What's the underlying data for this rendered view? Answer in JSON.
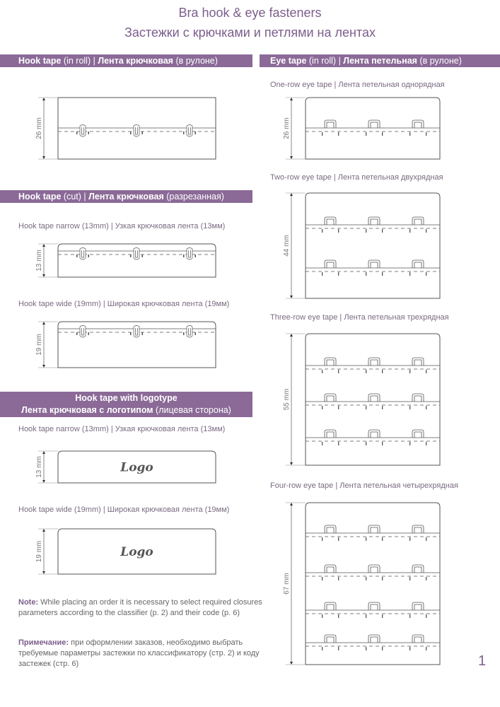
{
  "title_en": "Bra hook & eye fasteners",
  "title_ru": "Застежки с крючками и петлями на лентах",
  "colors": {
    "accent": "#8b6a97",
    "title": "#7c5e8c",
    "line": "#555555"
  },
  "sections": {
    "hook_roll": {
      "b1": "Hook tape",
      "n1": " (in roll) | ",
      "b2": "Лента крючковая",
      "n2": " (в рулоне)"
    },
    "eye_roll": {
      "b1": "Eye tape",
      "n1": " (in roll) | ",
      "b2": "Лента петельная",
      "n2": " (в рулоне)"
    },
    "hook_cut": {
      "b1": "Hook tape",
      "n1": " (cut) | ",
      "b2": "Лента крючковая",
      "n2": " (разрезанная)"
    },
    "hook_logo": {
      "line1": "Hook tape with logotype",
      "b2": "Лента крючковая с логотипом",
      "n2": " (лицевая сторона)"
    }
  },
  "captions": {
    "hook_narrow": "Hook tape narrow (13mm) | Узкая крючковая лента (13мм)",
    "hook_wide": "Hook tape wide (19mm) | Широкая крючковая лента (19мм)",
    "logo_narrow": "Hook tape narrow (13mm) | Узкая крючковая лента (13мм)",
    "logo_wide": "Hook tape wide (19mm) | Широкая крючковая лента (19мм)",
    "eye1": "One-row eye tape | Лента петельная однорядная",
    "eye2": "Two-row eye tape | Лента петельная двухрядная",
    "eye3": "Three-row eye tape | Лента петельная трехрядная",
    "eye4": "Four-row eye tape | Лента петельная четырехрядная"
  },
  "diagrams": {
    "hook_roll": {
      "dim": "26 mm",
      "kind": "hook",
      "rows": 1
    },
    "hook_narrow": {
      "dim": "13 mm",
      "kind": "hook",
      "rows": 1
    },
    "hook_wide": {
      "dim": "19 mm",
      "kind": "hook",
      "rows": 1
    },
    "logo_narrow": {
      "dim": "13 mm",
      "kind": "logo",
      "logo": "Logo"
    },
    "logo_wide": {
      "dim": "19 mm",
      "kind": "logo",
      "logo": "Logo"
    },
    "eye1": {
      "dim": "26 mm",
      "kind": "eye",
      "rows": 1
    },
    "eye2": {
      "dim": "44 mm",
      "kind": "eye",
      "rows": 2
    },
    "eye3": {
      "dim": "55 mm",
      "kind": "eye",
      "rows": 3
    },
    "eye4": {
      "dim": "67 mm",
      "kind": "eye",
      "rows": 4
    }
  },
  "note_en": {
    "label": "Note:",
    "text": " While placing an order it is necessary to select required closures parameters according to the classifier (p. 2) and their code (p. 6)"
  },
  "note_ru": {
    "label": "Примечание:",
    "text": " при оформлении заказов, необходимо выбрать требуемые параметры застежки по классификатору (стр. 2) и коду застежек (стр. 6)"
  },
  "page_number": "1"
}
